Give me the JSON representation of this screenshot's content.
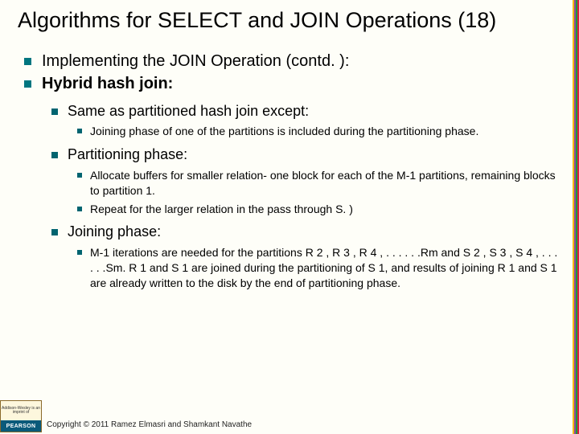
{
  "edge_colors": [
    "#f5b800",
    "#8b4a9c",
    "#1a9a3a",
    "#d81e3e"
  ],
  "title": "Algorithms for SELECT and JOIN Operations (18)",
  "b1": "Implementing the JOIN Operation (contd. ):",
  "b2": "Hybrid hash join:",
  "b2_1": "Same as partitioned hash join except:",
  "b2_1_1": "Joining phase of one of the partitions is included during the partitioning phase.",
  "b2_2": "Partitioning phase:",
  "b2_2_1": "Allocate buffers for smaller relation- one block for each of the M-1 partitions, remaining blocks to partition 1.",
  "b2_2_2": "Repeat for the larger relation in the pass through S. )",
  "b2_3": "Joining phase:",
  "b2_3_1": "M-1 iterations are needed for the partitions R 2 , R 3 , R 4 , . . . . . .Rm and S 2 , S 3 , S 4 ,  . . . . . .Sm. R 1 and S 1  are joined during the partitioning of S 1, and results of joining R 1 and  S 1 are already written to the disk by the end of partitioning phase.",
  "logo_top": "Addison-Wesley is an imprint of",
  "logo_bottom": "PEARSON",
  "copyright": "Copyright © 2011 Ramez Elmasri and Shamkant Navathe"
}
